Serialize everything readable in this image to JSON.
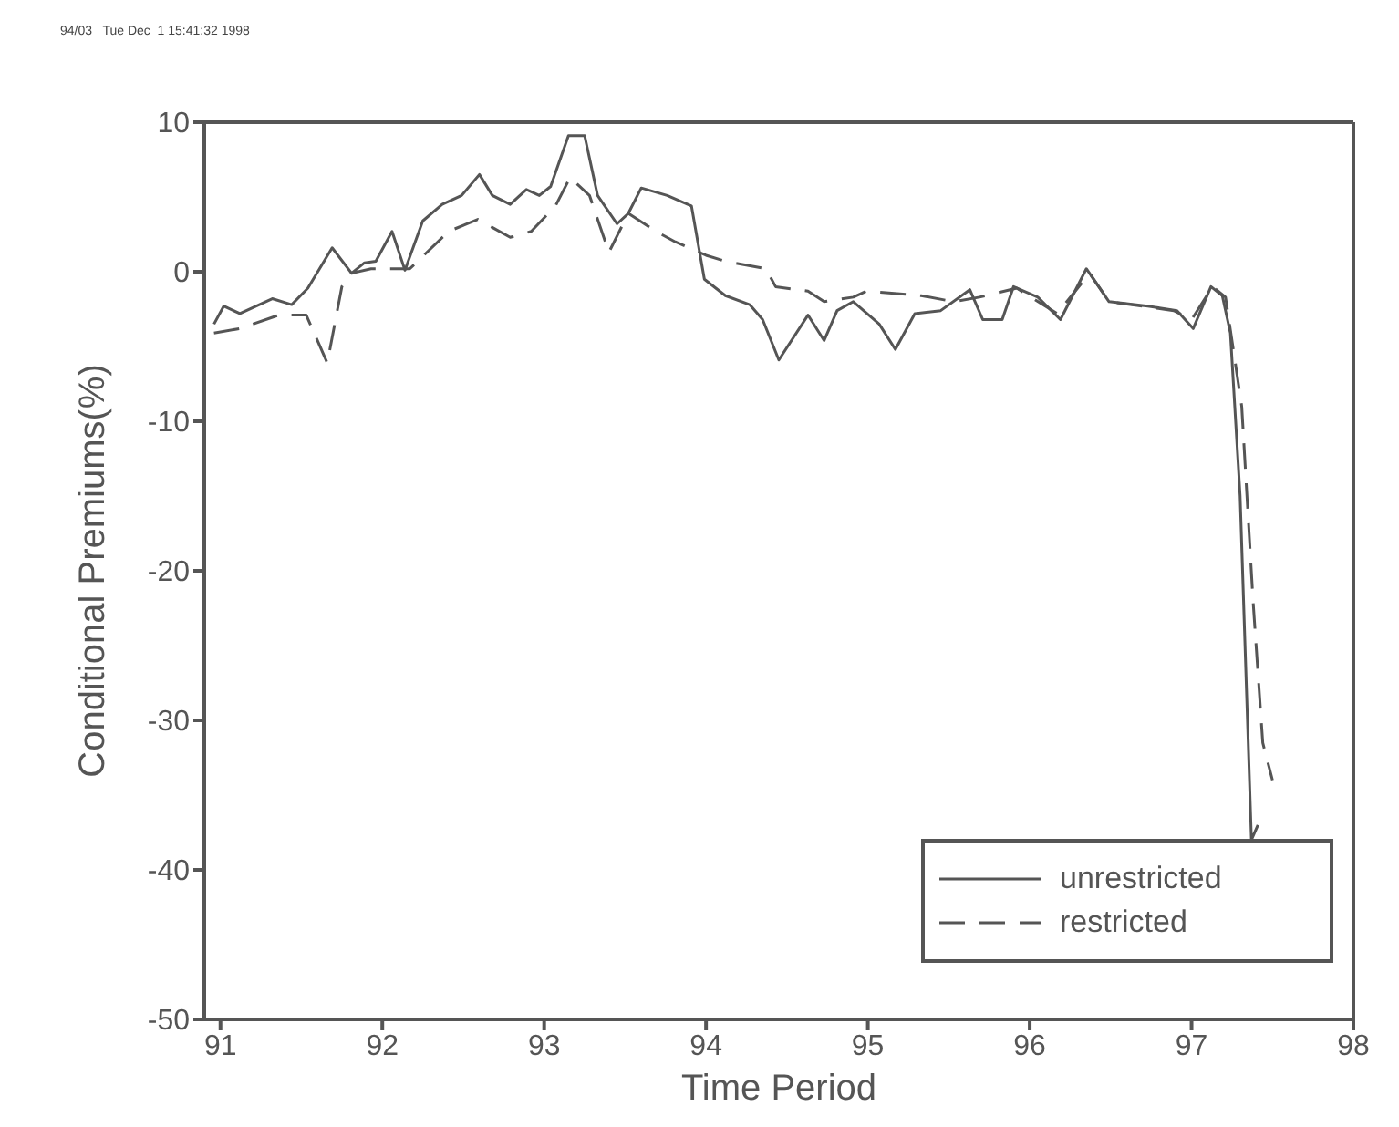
{
  "chart_data": {
    "type": "line",
    "xlabel": "Time Period",
    "ylabel": "Conditional Premiums(%)",
    "annotations": [
      "94/03   Tue Dec  1 15:41:32 1998"
    ],
    "xlim": [
      90.9,
      98
    ],
    "xticks": [
      91,
      92,
      93,
      94,
      95,
      96,
      97,
      98
    ],
    "ylim": [
      -50,
      10
    ],
    "yticks": [
      -50,
      -40,
      -30,
      -20,
      -10,
      0,
      10
    ],
    "grid": false,
    "legend": "bottom right",
    "marker": "none",
    "series": [
      {
        "name": "unrestricted",
        "color": "#555555",
        "line_style": "solid",
        "x": [
          90.96,
          91.02,
          91.12,
          91.32,
          91.44,
          91.54,
          91.69,
          91.81,
          91.89,
          91.96,
          92.06,
          92.14,
          92.25,
          92.37,
          92.49,
          92.6,
          92.68,
          92.79,
          92.89,
          92.97,
          93.04,
          93.15,
          93.25,
          93.33,
          93.45,
          93.52,
          93.6,
          93.76,
          93.91,
          93.99,
          94.12,
          94.27,
          94.35,
          94.45,
          94.63,
          94.73,
          94.81,
          94.91,
          95.07,
          95.17,
          95.29,
          95.45,
          95.63,
          95.71,
          95.83,
          95.9,
          96.05,
          96.19,
          96.35,
          96.49,
          96.73,
          96.91,
          97.01,
          97.12,
          97.19,
          97.24,
          97.3,
          97.37,
          97.41
        ],
        "values": [
          -3.5,
          -2.3,
          -2.8,
          -1.8,
          -2.2,
          -1.1,
          1.6,
          -0.1,
          0.6,
          0.7,
          2.7,
          0.1,
          3.4,
          4.5,
          5.1,
          6.5,
          5.1,
          4.5,
          5.5,
          5.1,
          5.7,
          9.1,
          9.1,
          5.1,
          3.2,
          3.9,
          5.6,
          5.1,
          4.4,
          -0.5,
          -1.6,
          -2.2,
          -3.2,
          -5.9,
          -2.9,
          -4.6,
          -2.6,
          -2,
          -3.5,
          -5.2,
          -2.8,
          -2.6,
          -1.2,
          -3.2,
          -3.2,
          -1,
          -1.7,
          -3.2,
          0.2,
          -2,
          -2.3,
          -2.6,
          -3.8,
          -1,
          -1.6,
          -4.1,
          -15,
          -38,
          -37
        ]
      },
      {
        "name": "restricted",
        "color": "#555555",
        "line_style": "dashed",
        "x": [
          90.96,
          91.12,
          91.36,
          91.53,
          91.66,
          91.75,
          91.81,
          91.93,
          92.17,
          92.41,
          92.59,
          92.79,
          92.92,
          93.07,
          93.16,
          93.28,
          93.4,
          93.52,
          93.69,
          93.81,
          94,
          94.12,
          94.37,
          94.43,
          94.63,
          94.73,
          94.91,
          94.99,
          95.33,
          95.53,
          95.69,
          95.92,
          96.17,
          96.37,
          96.49,
          96.89,
          97,
          97.13,
          97.21,
          97.31,
          97.38,
          97.44,
          97.5
        ],
        "values": [
          -4.1,
          -3.8,
          -2.9,
          -2.9,
          -6.1,
          -1,
          -0.1,
          0.2,
          0.2,
          2.7,
          3.5,
          2.3,
          2.7,
          4.4,
          6.3,
          5.1,
          1.3,
          3.9,
          2.7,
          2,
          1.1,
          0.7,
          0.2,
          -1,
          -1.3,
          -2,
          -1.7,
          -1.3,
          -1.6,
          -2,
          -1.7,
          -1.1,
          -2.8,
          -0.1,
          -2,
          -2.6,
          -3.2,
          -1,
          -1.7,
          -9,
          -22,
          -31.5,
          -34
        ]
      }
    ]
  }
}
